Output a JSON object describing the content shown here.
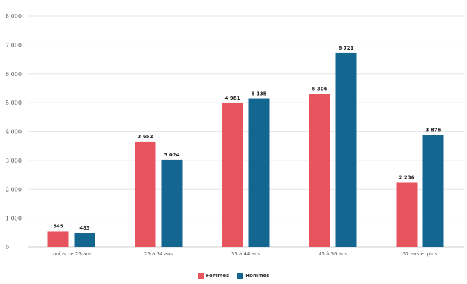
{
  "chart_data": {
    "type": "bar",
    "categories": [
      "moins de 26 ans",
      "26 à 34 ans",
      "35 à 44 ans",
      "45 à 56 ans",
      "57 ans et plus"
    ],
    "series": [
      {
        "name": "Femmes",
        "color": "#e8545e",
        "values": [
          545,
          3652,
          4981,
          5306,
          2236
        ],
        "labels": [
          "545",
          "3 652",
          "4 981",
          "5 306",
          "2 236"
        ]
      },
      {
        "name": "Hommes",
        "color": "#136690",
        "values": [
          483,
          3024,
          5135,
          6721,
          3876
        ],
        "labels": [
          "483",
          "3 024",
          "5 135",
          "6 721",
          "3 876"
        ]
      }
    ],
    "yticks": [
      0,
      1000,
      2000,
      3000,
      4000,
      5000,
      6000,
      7000,
      8000
    ],
    "ytick_labels": [
      "0",
      "1 000",
      "2 000",
      "3 000",
      "4 000",
      "5 000",
      "6 000",
      "7 000",
      "8 000"
    ],
    "ylim": [
      0,
      8000
    ],
    "grid": true,
    "legend_position": "bottom-center"
  }
}
